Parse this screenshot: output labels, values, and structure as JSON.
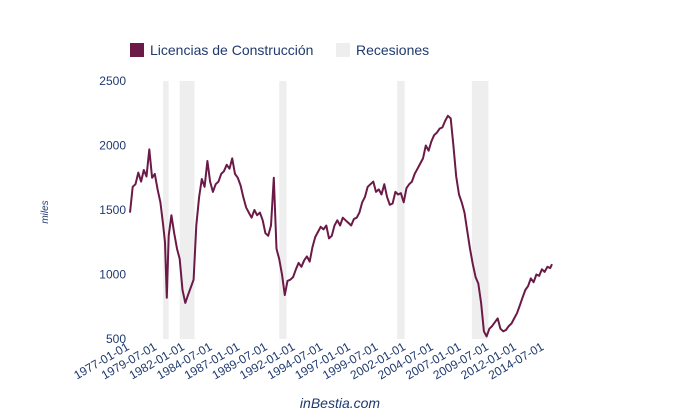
{
  "chart_data": {
    "type": "line",
    "ylabel": "miles",
    "ylim": [
      500,
      2500
    ],
    "yticks": [
      500,
      1000,
      1500,
      2000,
      2500
    ],
    "xlim": [
      "1977-01-01",
      "2015-03-01"
    ],
    "x_tick_labels": [
      "1977-01-01",
      "1979-07-01",
      "1982-01-01",
      "1984-07-01",
      "1987-01-01",
      "1989-07-01",
      "1992-01-01",
      "1994-07-01",
      "1997-01-01",
      "1999-07-01",
      "2002-01-01",
      "2004-07-01",
      "2007-01-01",
      "2009-07-01",
      "2012-01-01",
      "2014-07-01"
    ],
    "legend": {
      "position": "top-left",
      "items": [
        {
          "label": "Licencias de Construcción",
          "color": "#6b1a47"
        },
        {
          "label": "Recesiones",
          "color": "#eeeeee"
        }
      ]
    },
    "recessions": [
      {
        "start": "1980-01-01",
        "end": "1980-07-01"
      },
      {
        "start": "1981-07-01",
        "end": "1982-11-01"
      },
      {
        "start": "1990-07-01",
        "end": "1991-03-01"
      },
      {
        "start": "2001-03-01",
        "end": "2001-11-01"
      },
      {
        "start": "2007-12-01",
        "end": "2009-06-01"
      }
    ],
    "series": [
      {
        "name": "Licencias de Construcción",
        "color": "#6b1a47",
        "points": [
          [
            "1977-01-01",
            1480
          ],
          [
            "1977-04-01",
            1680
          ],
          [
            "1977-07-01",
            1700
          ],
          [
            "1977-10-01",
            1790
          ],
          [
            "1978-01-01",
            1720
          ],
          [
            "1978-04-01",
            1810
          ],
          [
            "1978-07-01",
            1760
          ],
          [
            "1978-10-01",
            1970
          ],
          [
            "1979-01-01",
            1750
          ],
          [
            "1979-04-01",
            1780
          ],
          [
            "1979-07-01",
            1660
          ],
          [
            "1979-10-01",
            1560
          ],
          [
            "1980-01-01",
            1380
          ],
          [
            "1980-03-01",
            1250
          ],
          [
            "1980-05-01",
            820
          ],
          [
            "1980-07-01",
            1300
          ],
          [
            "1980-10-01",
            1460
          ],
          [
            "1981-01-01",
            1320
          ],
          [
            "1981-04-01",
            1200
          ],
          [
            "1981-07-01",
            1120
          ],
          [
            "1981-10-01",
            880
          ],
          [
            "1982-01-01",
            780
          ],
          [
            "1982-04-01",
            840
          ],
          [
            "1982-07-01",
            900
          ],
          [
            "1982-10-01",
            960
          ],
          [
            "1983-01-01",
            1380
          ],
          [
            "1983-04-01",
            1600
          ],
          [
            "1983-07-01",
            1740
          ],
          [
            "1983-10-01",
            1680
          ],
          [
            "1984-01-01",
            1880
          ],
          [
            "1984-04-01",
            1720
          ],
          [
            "1984-07-01",
            1640
          ],
          [
            "1984-10-01",
            1700
          ],
          [
            "1985-01-01",
            1720
          ],
          [
            "1985-04-01",
            1780
          ],
          [
            "1985-07-01",
            1800
          ],
          [
            "1985-10-01",
            1850
          ],
          [
            "1986-01-01",
            1820
          ],
          [
            "1986-04-01",
            1900
          ],
          [
            "1986-07-01",
            1780
          ],
          [
            "1986-10-01",
            1750
          ],
          [
            "1987-01-01",
            1690
          ],
          [
            "1987-04-01",
            1600
          ],
          [
            "1987-07-01",
            1520
          ],
          [
            "1987-10-01",
            1480
          ],
          [
            "1988-01-01",
            1440
          ],
          [
            "1988-04-01",
            1500
          ],
          [
            "1988-07-01",
            1460
          ],
          [
            "1988-10-01",
            1480
          ],
          [
            "1989-01-01",
            1420
          ],
          [
            "1989-04-01",
            1320
          ],
          [
            "1989-07-01",
            1300
          ],
          [
            "1989-10-01",
            1380
          ],
          [
            "1990-01-01",
            1750
          ],
          [
            "1990-04-01",
            1200
          ],
          [
            "1990-07-01",
            1120
          ],
          [
            "1990-10-01",
            1000
          ],
          [
            "1991-01-01",
            840
          ],
          [
            "1991-04-01",
            950
          ],
          [
            "1991-07-01",
            960
          ],
          [
            "1991-10-01",
            980
          ],
          [
            "1992-01-01",
            1040
          ],
          [
            "1992-04-01",
            1090
          ],
          [
            "1992-07-01",
            1060
          ],
          [
            "1992-10-01",
            1110
          ],
          [
            "1993-01-01",
            1140
          ],
          [
            "1993-04-01",
            1100
          ],
          [
            "1993-07-01",
            1210
          ],
          [
            "1993-10-01",
            1290
          ],
          [
            "1994-01-01",
            1330
          ],
          [
            "1994-04-01",
            1370
          ],
          [
            "1994-07-01",
            1350
          ],
          [
            "1994-10-01",
            1380
          ],
          [
            "1995-01-01",
            1280
          ],
          [
            "1995-04-01",
            1300
          ],
          [
            "1995-07-01",
            1380
          ],
          [
            "1995-10-01",
            1420
          ],
          [
            "1996-01-01",
            1380
          ],
          [
            "1996-04-01",
            1440
          ],
          [
            "1996-07-01",
            1420
          ],
          [
            "1996-10-01",
            1400
          ],
          [
            "1997-01-01",
            1380
          ],
          [
            "1997-04-01",
            1430
          ],
          [
            "1997-07-01",
            1440
          ],
          [
            "1997-10-01",
            1480
          ],
          [
            "1998-01-01",
            1560
          ],
          [
            "1998-04-01",
            1600
          ],
          [
            "1998-07-01",
            1680
          ],
          [
            "1998-10-01",
            1700
          ],
          [
            "1999-01-01",
            1720
          ],
          [
            "1999-04-01",
            1640
          ],
          [
            "1999-07-01",
            1660
          ],
          [
            "1999-10-01",
            1620
          ],
          [
            "2000-01-01",
            1700
          ],
          [
            "2000-04-01",
            1600
          ],
          [
            "2000-07-01",
            1540
          ],
          [
            "2000-10-01",
            1550
          ],
          [
            "2001-01-01",
            1640
          ],
          [
            "2001-04-01",
            1620
          ],
          [
            "2001-07-01",
            1630
          ],
          [
            "2001-10-01",
            1560
          ],
          [
            "2002-01-01",
            1670
          ],
          [
            "2002-04-01",
            1700
          ],
          [
            "2002-07-01",
            1720
          ],
          [
            "2002-10-01",
            1780
          ],
          [
            "2003-01-01",
            1820
          ],
          [
            "2003-04-01",
            1860
          ],
          [
            "2003-07-01",
            1900
          ],
          [
            "2003-10-01",
            2000
          ],
          [
            "2004-01-01",
            1960
          ],
          [
            "2004-04-01",
            2030
          ],
          [
            "2004-07-01",
            2080
          ],
          [
            "2004-10-01",
            2100
          ],
          [
            "2005-01-01",
            2130
          ],
          [
            "2005-04-01",
            2140
          ],
          [
            "2005-07-01",
            2190
          ],
          [
            "2005-10-01",
            2230
          ],
          [
            "2006-01-01",
            2210
          ],
          [
            "2006-04-01",
            2000
          ],
          [
            "2006-07-01",
            1760
          ],
          [
            "2006-10-01",
            1620
          ],
          [
            "2007-01-01",
            1560
          ],
          [
            "2007-04-01",
            1480
          ],
          [
            "2007-07-01",
            1340
          ],
          [
            "2007-10-01",
            1200
          ],
          [
            "2008-01-01",
            1080
          ],
          [
            "2008-04-01",
            980
          ],
          [
            "2008-07-01",
            930
          ],
          [
            "2008-10-01",
            780
          ],
          [
            "2009-01-01",
            560
          ],
          [
            "2009-04-01",
            520
          ],
          [
            "2009-07-01",
            580
          ],
          [
            "2009-10-01",
            600
          ],
          [
            "2010-01-01",
            630
          ],
          [
            "2010-04-01",
            660
          ],
          [
            "2010-07-01",
            580
          ],
          [
            "2010-10-01",
            560
          ],
          [
            "2011-01-01",
            570
          ],
          [
            "2011-04-01",
            600
          ],
          [
            "2011-07-01",
            620
          ],
          [
            "2011-10-01",
            660
          ],
          [
            "2012-01-01",
            700
          ],
          [
            "2012-04-01",
            760
          ],
          [
            "2012-07-01",
            820
          ],
          [
            "2012-10-01",
            880
          ],
          [
            "2013-01-01",
            910
          ],
          [
            "2013-04-01",
            970
          ],
          [
            "2013-07-01",
            940
          ],
          [
            "2013-10-01",
            1000
          ],
          [
            "2014-01-01",
            990
          ],
          [
            "2014-04-01",
            1040
          ],
          [
            "2014-07-01",
            1020
          ],
          [
            "2014-10-01",
            1060
          ],
          [
            "2015-01-01",
            1050
          ],
          [
            "2015-03-01",
            1080
          ]
        ]
      }
    ]
  },
  "footer": "inBestia.com"
}
